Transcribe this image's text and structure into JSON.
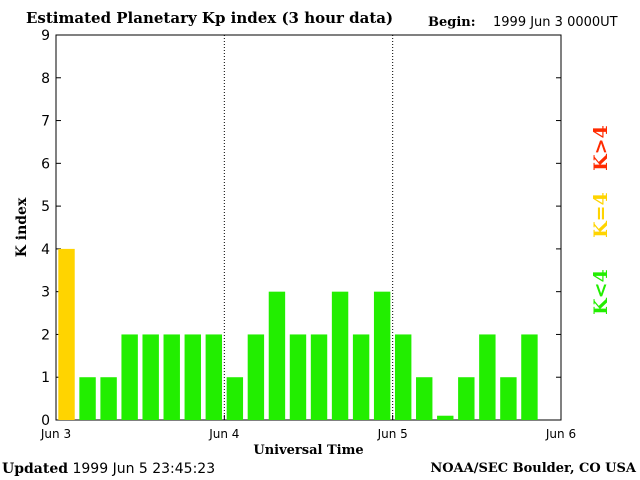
{
  "header": {
    "title": "Estimated Planetary Kp index (3 hour data)",
    "begin_label": "Begin:",
    "begin_value": "1999 Jun 3 0000UT"
  },
  "footer": {
    "updated_label": "Updated",
    "updated_value": "1999 Jun  5 23:45:23",
    "credit": "NOAA/SEC Boulder, CO USA"
  },
  "legend": [
    {
      "label": "K>4",
      "color": "#ff2a00"
    },
    {
      "label": "K=4",
      "color": "#ffd400"
    },
    {
      "label": "K<4",
      "color": "#22ee00"
    }
  ],
  "chart_data": {
    "type": "bar",
    "title": "Estimated Planetary Kp index (3 hour data)",
    "xlabel": "Universal Time",
    "ylabel": "K index",
    "ylim": [
      0,
      9
    ],
    "yticks": [
      "0",
      "1",
      "2",
      "3",
      "4",
      "5",
      "6",
      "7",
      "8",
      "9"
    ],
    "xticks": [
      "Jun 3",
      "Jun 4",
      "Jun 5",
      "Jun 6"
    ],
    "intervals_per_day": 8,
    "days": 3,
    "values": [
      4,
      1,
      1,
      2,
      2,
      2,
      2,
      2,
      1,
      2,
      3,
      2,
      2,
      3,
      2,
      3,
      2,
      1,
      0.1,
      1,
      2,
      1,
      2
    ],
    "colors": {
      "below": "#22ee00",
      "equal": "#ffd400",
      "above": "#ff2a00"
    },
    "grid": "dotted vertical lines at day boundaries"
  }
}
